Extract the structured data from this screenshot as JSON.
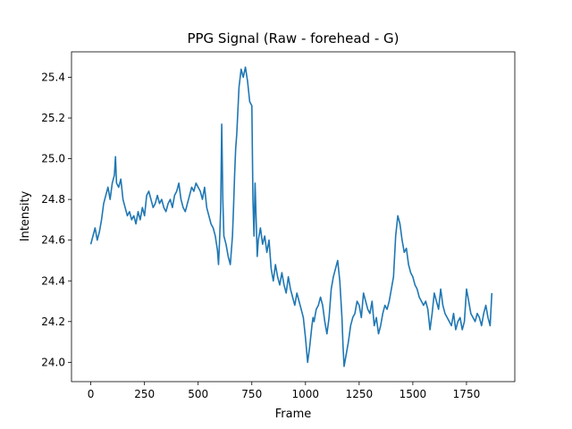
{
  "chart_data": {
    "type": "line",
    "title": "PPG Signal (Raw - forehead - G)",
    "xlabel": "Frame",
    "ylabel": "Intensity",
    "xlim": [
      -90,
      1975
    ],
    "ylim": [
      23.905,
      25.525
    ],
    "xticks": [
      0,
      250,
      500,
      750,
      1000,
      1250,
      1500,
      1750
    ],
    "xtick_labels": [
      "0",
      "250",
      "500",
      "750",
      "1000",
      "1250",
      "1500",
      "1750"
    ],
    "yticks": [
      24.0,
      24.2,
      24.4,
      24.6,
      24.8,
      25.0,
      25.2,
      25.4
    ],
    "ytick_labels": [
      "24.0",
      "24.2",
      "24.4",
      "24.6",
      "24.8",
      "25.0",
      "25.2",
      "25.4"
    ],
    "grid": false,
    "series": [
      {
        "color": "#1f77b4",
        "x": [
          0,
          10,
          20,
          30,
          40,
          50,
          60,
          70,
          80,
          90,
          100,
          110,
          115,
          120,
          130,
          140,
          150,
          160,
          170,
          180,
          190,
          200,
          210,
          220,
          230,
          240,
          250,
          260,
          270,
          280,
          290,
          300,
          310,
          320,
          330,
          340,
          350,
          360,
          370,
          380,
          390,
          400,
          410,
          420,
          430,
          440,
          450,
          460,
          470,
          480,
          490,
          500,
          510,
          520,
          530,
          540,
          550,
          560,
          570,
          580,
          590,
          595,
          600,
          605,
          610,
          615,
          620,
          630,
          640,
          650,
          660,
          665,
          670,
          675,
          680,
          690,
          700,
          710,
          720,
          730,
          740,
          750,
          755,
          760,
          765,
          770,
          775,
          780,
          790,
          800,
          810,
          820,
          830,
          840,
          850,
          860,
          870,
          880,
          890,
          900,
          910,
          920,
          930,
          940,
          950,
          960,
          970,
          980,
          990,
          1000,
          1010,
          1020,
          1030,
          1035,
          1040,
          1050,
          1060,
          1070,
          1080,
          1090,
          1100,
          1110,
          1120,
          1130,
          1140,
          1150,
          1160,
          1170,
          1175,
          1180,
          1190,
          1200,
          1210,
          1220,
          1230,
          1240,
          1250,
          1260,
          1270,
          1280,
          1290,
          1300,
          1310,
          1320,
          1330,
          1340,
          1350,
          1360,
          1370,
          1380,
          1390,
          1400,
          1410,
          1420,
          1430,
          1440,
          1450,
          1460,
          1470,
          1480,
          1490,
          1500,
          1510,
          1520,
          1530,
          1540,
          1550,
          1560,
          1570,
          1580,
          1590,
          1600,
          1610,
          1620,
          1630,
          1640,
          1650,
          1660,
          1670,
          1680,
          1690,
          1700,
          1710,
          1720,
          1730,
          1740,
          1750,
          1760,
          1770,
          1780,
          1790,
          1800,
          1810,
          1820,
          1830,
          1840,
          1850,
          1860,
          1868
        ],
        "y": [
          24.58,
          24.62,
          24.66,
          24.6,
          24.64,
          24.7,
          24.78,
          24.82,
          24.86,
          24.8,
          24.88,
          24.92,
          25.01,
          24.88,
          24.86,
          24.9,
          24.8,
          24.76,
          24.72,
          24.74,
          24.7,
          24.72,
          24.68,
          24.74,
          24.7,
          24.76,
          24.72,
          24.82,
          24.84,
          24.8,
          24.76,
          24.78,
          24.82,
          24.78,
          24.8,
          24.76,
          24.74,
          24.78,
          24.8,
          24.76,
          24.82,
          24.84,
          24.88,
          24.8,
          24.76,
          24.74,
          24.78,
          24.82,
          24.86,
          24.84,
          24.88,
          24.86,
          24.84,
          24.8,
          24.86,
          24.76,
          24.72,
          24.68,
          24.66,
          24.62,
          24.55,
          24.48,
          24.6,
          24.75,
          25.17,
          24.8,
          24.62,
          24.58,
          24.52,
          24.48,
          24.62,
          24.76,
          24.92,
          25.05,
          25.12,
          25.35,
          25.44,
          25.4,
          25.45,
          25.38,
          25.28,
          25.26,
          24.8,
          24.62,
          24.88,
          24.7,
          24.52,
          24.6,
          24.66,
          24.58,
          24.62,
          24.54,
          24.6,
          24.46,
          24.4,
          24.48,
          24.42,
          24.38,
          24.44,
          24.38,
          24.34,
          24.42,
          24.36,
          24.32,
          24.28,
          24.34,
          24.3,
          24.26,
          24.22,
          24.12,
          24.0,
          24.08,
          24.18,
          24.22,
          24.2,
          24.26,
          24.28,
          24.32,
          24.28,
          24.2,
          24.14,
          24.22,
          24.36,
          24.42,
          24.46,
          24.5,
          24.4,
          24.22,
          24.08,
          23.98,
          24.04,
          24.1,
          24.18,
          24.22,
          24.24,
          24.3,
          24.28,
          24.22,
          24.34,
          24.3,
          24.26,
          24.24,
          24.3,
          24.18,
          24.22,
          24.14,
          24.18,
          24.24,
          24.28,
          24.26,
          24.3,
          24.36,
          24.42,
          24.62,
          24.72,
          24.68,
          24.6,
          24.54,
          24.56,
          24.48,
          24.44,
          24.42,
          24.38,
          24.36,
          24.32,
          24.3,
          24.28,
          24.3,
          24.26,
          24.16,
          24.24,
          24.34,
          24.3,
          24.26,
          24.36,
          24.28,
          24.24,
          24.22,
          24.2,
          24.18,
          24.24,
          24.16,
          24.2,
          24.22,
          24.16,
          24.2,
          24.36,
          24.3,
          24.24,
          24.22,
          24.2,
          24.24,
          24.22,
          24.18,
          24.24,
          24.28,
          24.22,
          24.18,
          24.34
        ]
      }
    ]
  }
}
